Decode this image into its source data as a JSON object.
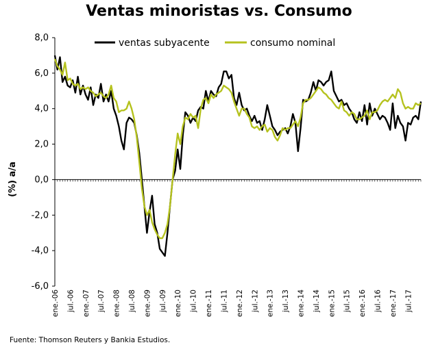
{
  "chart_data": {
    "type": "line",
    "title": "Ventas minoristas vs. Consumo",
    "ylabel": "(%) a/a",
    "xlabel": "",
    "ylim": [
      -6,
      8
    ],
    "yticks": [
      -6,
      -4,
      -2,
      0,
      2,
      4,
      6,
      8
    ],
    "ytick_labels": [
      "-6,0",
      "-4,0",
      "-2,0",
      "0,0",
      "2,0",
      "4,0",
      "6,0",
      "8,0"
    ],
    "x_start": "2006-01",
    "x_end": "2017-12",
    "xtick_labels": [
      "ene.-06",
      "jul.-06",
      "ene.-07",
      "jul.-07",
      "ene.-08",
      "jul.-08",
      "ene.-09",
      "jul.-09",
      "ene.-10",
      "jul.-10",
      "ene.-11",
      "jul.-11",
      "ene.-12",
      "jul.-12",
      "ene.-13",
      "jul.-13",
      "ene.-14",
      "jul.-14",
      "ene.-15",
      "jul.-15",
      "ene.-16",
      "jul.-16",
      "ene.-17",
      "jul.-17"
    ],
    "legend_position": "top",
    "series": [
      {
        "name": "ventas subyacente",
        "color": "#000000",
        "points": [
          [
            "2006-01",
            7.0
          ],
          [
            "2006-02",
            6.2
          ],
          [
            "2006-03",
            6.9
          ],
          [
            "2006-04",
            5.5
          ],
          [
            "2006-05",
            5.8
          ],
          [
            "2006-06",
            5.3
          ],
          [
            "2006-07",
            5.2
          ],
          [
            "2006-08",
            5.6
          ],
          [
            "2006-09",
            4.9
          ],
          [
            "2006-10",
            5.8
          ],
          [
            "2006-11",
            4.8
          ],
          [
            "2006-12",
            5.3
          ],
          [
            "2007-01",
            4.8
          ],
          [
            "2007-02",
            4.5
          ],
          [
            "2007-03",
            5.2
          ],
          [
            "2007-04",
            4.2
          ],
          [
            "2007-05",
            4.8
          ],
          [
            "2007-06",
            4.6
          ],
          [
            "2007-07",
            5.4
          ],
          [
            "2007-08",
            4.4
          ],
          [
            "2007-09",
            4.8
          ],
          [
            "2007-10",
            4.4
          ],
          [
            "2007-11",
            5.0
          ],
          [
            "2007-12",
            4.0
          ],
          [
            "2008-01",
            3.6
          ],
          [
            "2008-02",
            3.0
          ],
          [
            "2008-03",
            2.2
          ],
          [
            "2008-04",
            1.7
          ],
          [
            "2008-05",
            3.2
          ],
          [
            "2008-06",
            3.5
          ],
          [
            "2008-07",
            3.4
          ],
          [
            "2008-08",
            3.2
          ],
          [
            "2008-09",
            2.5
          ],
          [
            "2008-10",
            1.5
          ],
          [
            "2008-11",
            0.0
          ],
          [
            "2008-12",
            -1.5
          ],
          [
            "2009-01",
            -3.0
          ],
          [
            "2009-02",
            -1.8
          ],
          [
            "2009-03",
            -0.9
          ],
          [
            "2009-04",
            -2.5
          ],
          [
            "2009-05",
            -3.0
          ],
          [
            "2009-06",
            -3.9
          ],
          [
            "2009-07",
            -4.1
          ],
          [
            "2009-08",
            -4.3
          ],
          [
            "2009-09",
            -3.0
          ],
          [
            "2009-10",
            -1.5
          ],
          [
            "2009-11",
            0.0
          ],
          [
            "2009-12",
            0.5
          ],
          [
            "2010-01",
            1.7
          ],
          [
            "2010-02",
            0.6
          ],
          [
            "2010-03",
            2.5
          ],
          [
            "2010-04",
            3.8
          ],
          [
            "2010-05",
            3.6
          ],
          [
            "2010-06",
            3.2
          ],
          [
            "2010-07",
            3.5
          ],
          [
            "2010-08",
            3.3
          ],
          [
            "2010-09",
            3.9
          ],
          [
            "2010-10",
            4.1
          ],
          [
            "2010-11",
            4.0
          ],
          [
            "2010-12",
            5.0
          ],
          [
            "2011-01",
            4.4
          ],
          [
            "2011-02",
            5.0
          ],
          [
            "2011-03",
            4.8
          ],
          [
            "2011-04",
            4.7
          ],
          [
            "2011-05",
            5.2
          ],
          [
            "2011-06",
            5.4
          ],
          [
            "2011-07",
            6.1
          ],
          [
            "2011-08",
            6.1
          ],
          [
            "2011-09",
            5.7
          ],
          [
            "2011-10",
            5.9
          ],
          [
            "2011-11",
            4.6
          ],
          [
            "2011-12",
            4.2
          ],
          [
            "2012-01",
            4.9
          ],
          [
            "2012-02",
            4.2
          ],
          [
            "2012-03",
            3.9
          ],
          [
            "2012-04",
            4.0
          ],
          [
            "2012-05",
            3.6
          ],
          [
            "2012-06",
            3.3
          ],
          [
            "2012-07",
            3.6
          ],
          [
            "2012-08",
            3.2
          ],
          [
            "2012-09",
            3.3
          ],
          [
            "2012-10",
            2.8
          ],
          [
            "2012-11",
            3.4
          ],
          [
            "2012-12",
            4.2
          ],
          [
            "2013-01",
            3.6
          ],
          [
            "2013-02",
            3.0
          ],
          [
            "2013-03",
            2.8
          ],
          [
            "2013-04",
            2.5
          ],
          [
            "2013-05",
            2.7
          ],
          [
            "2013-06",
            2.8
          ],
          [
            "2013-07",
            2.9
          ],
          [
            "2013-08",
            2.6
          ],
          [
            "2013-09",
            3.0
          ],
          [
            "2013-10",
            3.7
          ],
          [
            "2013-11",
            3.2
          ],
          [
            "2013-12",
            1.6
          ],
          [
            "2014-01",
            2.9
          ],
          [
            "2014-02",
            4.5
          ],
          [
            "2014-03",
            4.4
          ],
          [
            "2014-04",
            4.5
          ],
          [
            "2014-05",
            4.9
          ],
          [
            "2014-06",
            5.5
          ],
          [
            "2014-07",
            5.0
          ],
          [
            "2014-08",
            5.6
          ],
          [
            "2014-09",
            5.5
          ],
          [
            "2014-10",
            5.3
          ],
          [
            "2014-11",
            5.5
          ],
          [
            "2014-12",
            5.6
          ],
          [
            "2015-01",
            6.1
          ],
          [
            "2015-02",
            5.0
          ],
          [
            "2015-03",
            4.7
          ],
          [
            "2015-04",
            4.4
          ],
          [
            "2015-05",
            4.5
          ],
          [
            "2015-06",
            4.2
          ],
          [
            "2015-07",
            4.3
          ],
          [
            "2015-08",
            4.0
          ],
          [
            "2015-09",
            3.8
          ],
          [
            "2015-10",
            3.4
          ],
          [
            "2015-11",
            3.2
          ],
          [
            "2015-12",
            3.8
          ],
          [
            "2016-01",
            3.3
          ],
          [
            "2016-02",
            4.2
          ],
          [
            "2016-03",
            3.1
          ],
          [
            "2016-04",
            4.3
          ],
          [
            "2016-05",
            3.6
          ],
          [
            "2016-06",
            4.0
          ],
          [
            "2016-07",
            3.7
          ],
          [
            "2016-08",
            3.4
          ],
          [
            "2016-09",
            3.6
          ],
          [
            "2016-10",
            3.5
          ],
          [
            "2016-11",
            3.2
          ],
          [
            "2016-12",
            2.8
          ],
          [
            "2017-01",
            4.3
          ],
          [
            "2017-02",
            2.9
          ],
          [
            "2017-03",
            3.6
          ],
          [
            "2017-04",
            3.2
          ],
          [
            "2017-05",
            3.0
          ],
          [
            "2017-06",
            2.2
          ],
          [
            "2017-07",
            3.2
          ],
          [
            "2017-08",
            3.1
          ],
          [
            "2017-09",
            3.5
          ],
          [
            "2017-10",
            3.6
          ],
          [
            "2017-11",
            3.4
          ],
          [
            "2017-12",
            4.4
          ]
        ]
      },
      {
        "name": "consumo nominal",
        "color": "#b5c21e",
        "points": [
          [
            "2006-01",
            6.8
          ],
          [
            "2006-02",
            6.4
          ],
          [
            "2006-03",
            6.2
          ],
          [
            "2006-04",
            5.9
          ],
          [
            "2006-05",
            6.6
          ],
          [
            "2006-06",
            5.6
          ],
          [
            "2006-07",
            5.7
          ],
          [
            "2006-08",
            5.4
          ],
          [
            "2006-09",
            5.3
          ],
          [
            "2006-10",
            5.4
          ],
          [
            "2006-11",
            5.1
          ],
          [
            "2006-12",
            5.2
          ],
          [
            "2007-01",
            5.1
          ],
          [
            "2007-02",
            5.2
          ],
          [
            "2007-03",
            5.0
          ],
          [
            "2007-04",
            4.9
          ],
          [
            "2007-05",
            4.7
          ],
          [
            "2007-06",
            4.8
          ],
          [
            "2007-07",
            4.9
          ],
          [
            "2007-08",
            4.7
          ],
          [
            "2007-09",
            4.6
          ],
          [
            "2007-10",
            4.8
          ],
          [
            "2007-11",
            5.3
          ],
          [
            "2007-12",
            4.6
          ],
          [
            "2008-01",
            4.4
          ],
          [
            "2008-02",
            3.8
          ],
          [
            "2008-03",
            3.9
          ],
          [
            "2008-04",
            3.9
          ],
          [
            "2008-05",
            4.0
          ],
          [
            "2008-06",
            4.4
          ],
          [
            "2008-07",
            4.0
          ],
          [
            "2008-08",
            3.4
          ],
          [
            "2008-09",
            2.4
          ],
          [
            "2008-10",
            1.0
          ],
          [
            "2008-11",
            -0.5
          ],
          [
            "2008-12",
            -1.5
          ],
          [
            "2009-01",
            -2.0
          ],
          [
            "2009-02",
            -1.7
          ],
          [
            "2009-03",
            -2.4
          ],
          [
            "2009-04",
            -2.8
          ],
          [
            "2009-05",
            -3.1
          ],
          [
            "2009-06",
            -3.3
          ],
          [
            "2009-07",
            -3.3
          ],
          [
            "2009-08",
            -3.0
          ],
          [
            "2009-09",
            -2.5
          ],
          [
            "2009-10",
            -1.5
          ],
          [
            "2009-11",
            0.0
          ],
          [
            "2009-12",
            1.4
          ],
          [
            "2010-01",
            2.6
          ],
          [
            "2010-02",
            2.0
          ],
          [
            "2010-03",
            3.0
          ],
          [
            "2010-04",
            3.5
          ],
          [
            "2010-05",
            3.4
          ],
          [
            "2010-06",
            3.7
          ],
          [
            "2010-07",
            3.5
          ],
          [
            "2010-08",
            3.6
          ],
          [
            "2010-09",
            2.9
          ],
          [
            "2010-10",
            4.0
          ],
          [
            "2010-11",
            4.5
          ],
          [
            "2010-12",
            4.6
          ],
          [
            "2011-01",
            4.3
          ],
          [
            "2011-02",
            4.8
          ],
          [
            "2011-03",
            4.6
          ],
          [
            "2011-04",
            4.8
          ],
          [
            "2011-05",
            4.9
          ],
          [
            "2011-06",
            5.0
          ],
          [
            "2011-07",
            5.3
          ],
          [
            "2011-08",
            5.2
          ],
          [
            "2011-09",
            5.1
          ],
          [
            "2011-10",
            4.9
          ],
          [
            "2011-11",
            4.4
          ],
          [
            "2011-12",
            4.0
          ],
          [
            "2012-01",
            3.6
          ],
          [
            "2012-02",
            4.0
          ],
          [
            "2012-03",
            4.0
          ],
          [
            "2012-04",
            3.7
          ],
          [
            "2012-05",
            3.5
          ],
          [
            "2012-06",
            3.0
          ],
          [
            "2012-07",
            2.9
          ],
          [
            "2012-08",
            3.0
          ],
          [
            "2012-09",
            2.8
          ],
          [
            "2012-10",
            3.0
          ],
          [
            "2012-11",
            3.1
          ],
          [
            "2012-12",
            2.7
          ],
          [
            "2013-01",
            2.9
          ],
          [
            "2013-02",
            2.8
          ],
          [
            "2013-03",
            2.4
          ],
          [
            "2013-04",
            2.2
          ],
          [
            "2013-05",
            2.5
          ],
          [
            "2013-06",
            2.9
          ],
          [
            "2013-07",
            2.8
          ],
          [
            "2013-08",
            2.9
          ],
          [
            "2013-09",
            2.9
          ],
          [
            "2013-10",
            3.1
          ],
          [
            "2013-11",
            3.3
          ],
          [
            "2013-12",
            3.0
          ],
          [
            "2014-01",
            3.5
          ],
          [
            "2014-02",
            4.3
          ],
          [
            "2014-03",
            4.5
          ],
          [
            "2014-04",
            4.5
          ],
          [
            "2014-05",
            4.6
          ],
          [
            "2014-06",
            4.8
          ],
          [
            "2014-07",
            5.0
          ],
          [
            "2014-08",
            5.2
          ],
          [
            "2014-09",
            5.1
          ],
          [
            "2014-10",
            4.9
          ],
          [
            "2014-11",
            4.8
          ],
          [
            "2014-12",
            4.6
          ],
          [
            "2015-01",
            4.5
          ],
          [
            "2015-02",
            4.3
          ],
          [
            "2015-03",
            4.1
          ],
          [
            "2015-04",
            4.0
          ],
          [
            "2015-05",
            4.4
          ],
          [
            "2015-06",
            3.9
          ],
          [
            "2015-07",
            3.8
          ],
          [
            "2015-08",
            3.6
          ],
          [
            "2015-09",
            3.8
          ],
          [
            "2015-10",
            3.7
          ],
          [
            "2015-11",
            3.4
          ],
          [
            "2015-12",
            3.4
          ],
          [
            "2016-01",
            3.5
          ],
          [
            "2016-02",
            3.6
          ],
          [
            "2016-03",
            3.9
          ],
          [
            "2016-04",
            3.4
          ],
          [
            "2016-05",
            3.8
          ],
          [
            "2016-06",
            3.8
          ],
          [
            "2016-07",
            3.9
          ],
          [
            "2016-08",
            4.2
          ],
          [
            "2016-09",
            4.4
          ],
          [
            "2016-10",
            4.5
          ],
          [
            "2016-11",
            4.4
          ],
          [
            "2016-12",
            4.6
          ],
          [
            "2017-01",
            4.8
          ],
          [
            "2017-02",
            4.6
          ],
          [
            "2017-03",
            5.1
          ],
          [
            "2017-04",
            4.9
          ],
          [
            "2017-05",
            4.3
          ],
          [
            "2017-06",
            4.0
          ],
          [
            "2017-07",
            4.1
          ],
          [
            "2017-08",
            4.0
          ],
          [
            "2017-09",
            4.0
          ],
          [
            "2017-10",
            4.3
          ],
          [
            "2017-11",
            4.2
          ],
          [
            "2017-12",
            4.3
          ]
        ]
      }
    ],
    "source": "Fuente: Thomson Reuters y Bankia Estudios."
  }
}
